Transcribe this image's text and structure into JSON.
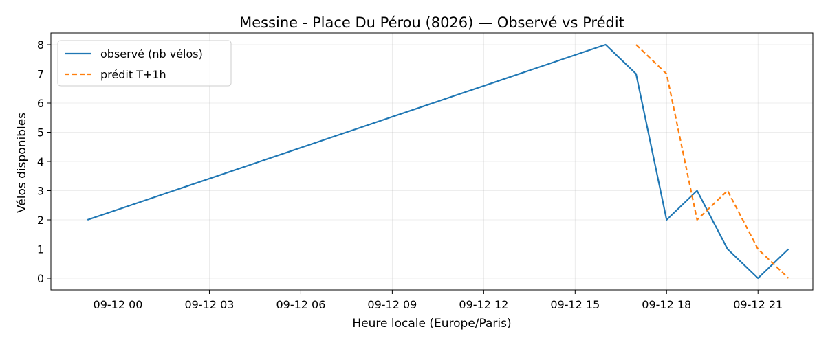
{
  "chart_data": {
    "type": "line",
    "title": "Messine - Place Du Pérou (8026) — Observé vs Prédit",
    "xlabel": "Heure locale (Europe/Paris)",
    "ylabel": "Vélos disponibles",
    "x_ticks": [
      "09-12 00",
      "09-12 03",
      "09-12 06",
      "09-12 09",
      "09-12 12",
      "09-12 15",
      "09-12 18",
      "09-12 21"
    ],
    "x_tick_hours": [
      0,
      3,
      6,
      9,
      12,
      15,
      18,
      21
    ],
    "y_ticks": [
      0,
      1,
      2,
      3,
      4,
      5,
      6,
      7,
      8
    ],
    "xlim_hours": [
      -2.2,
      22.8
    ],
    "ylim": [
      -0.4,
      8.4
    ],
    "grid": true,
    "legend_position": "top-left",
    "series": [
      {
        "name": "observé (nb vélos)",
        "color": "#1f77b4",
        "style": "solid",
        "x_hours": [
          -1,
          16,
          17,
          18,
          19,
          20,
          21,
          22
        ],
        "values": [
          2,
          8,
          7,
          2,
          3,
          1,
          0,
          1
        ]
      },
      {
        "name": "prédit T+1h",
        "color": "#ff7f0e",
        "style": "dashed",
        "x_hours": [
          17,
          18,
          19,
          20,
          21,
          22
        ],
        "values": [
          8,
          7,
          2,
          3,
          1,
          0
        ]
      }
    ]
  }
}
